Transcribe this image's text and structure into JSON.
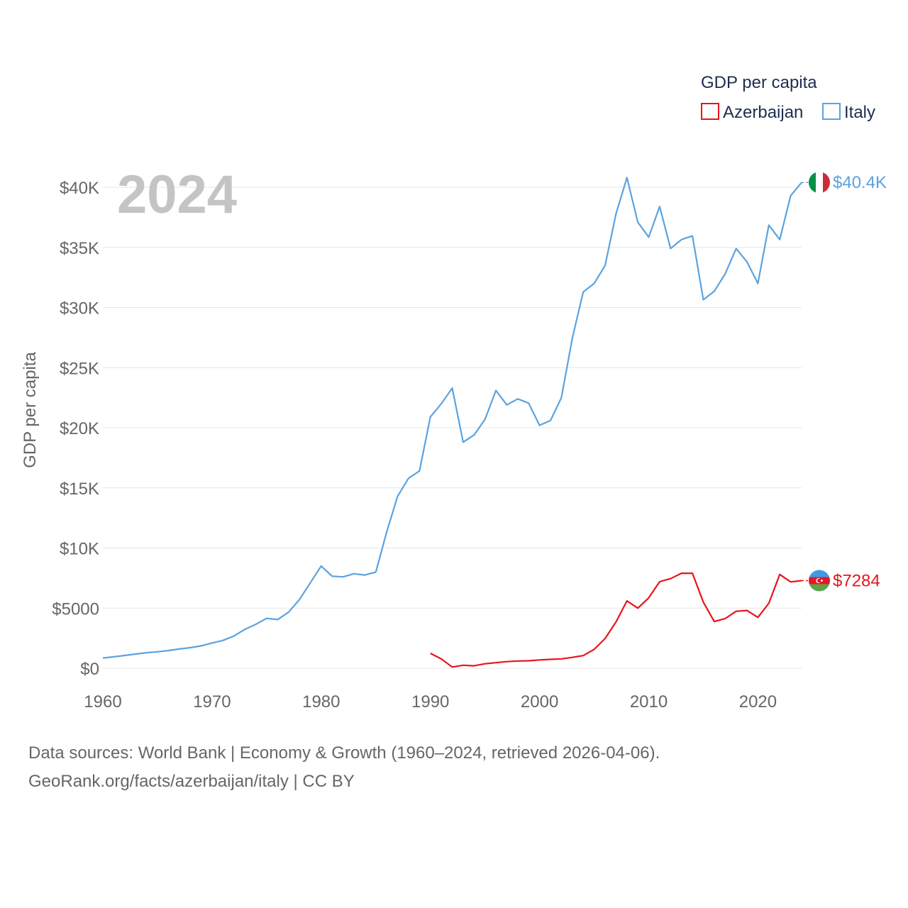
{
  "chart_data": {
    "type": "line",
    "title": "GDP per capita",
    "year_label": "2024",
    "ylabel": "GDP per capita",
    "xlabel": "",
    "xlim": [
      1960,
      2024
    ],
    "ylim": [
      0,
      42000
    ],
    "x_ticks": [
      1960,
      1970,
      1980,
      1990,
      2000,
      2010,
      2020
    ],
    "x_tick_labels": [
      "1960",
      "1970",
      "1980",
      "1990",
      "2000",
      "2010",
      "2020"
    ],
    "y_ticks": [
      0,
      5000,
      10000,
      15000,
      20000,
      25000,
      30000,
      35000,
      40000
    ],
    "y_tick_labels": [
      "$0",
      "$5000",
      "$10K",
      "$15K",
      "$20K",
      "$25K",
      "$30K",
      "$35K",
      "$40K"
    ],
    "grid": true,
    "legend": {
      "title": "GDP per capita",
      "position": "top-right"
    },
    "series": [
      {
        "name": "Azerbaijan",
        "color": "#e8141c",
        "end_label": "$7284",
        "flag_icon": "azerbaijan-flag-icon",
        "x": [
          1990,
          1991,
          1992,
          1993,
          1994,
          1995,
          1996,
          1997,
          1998,
          1999,
          2000,
          2001,
          2002,
          2003,
          2004,
          2005,
          2006,
          2007,
          2008,
          2009,
          2010,
          2011,
          2012,
          2013,
          2014,
          2015,
          2016,
          2017,
          2018,
          2019,
          2020,
          2021,
          2022,
          2023,
          2024
        ],
        "values": [
          1240,
          770,
          100,
          250,
          200,
          370,
          460,
          550,
          600,
          620,
          690,
          740,
          780,
          900,
          1050,
          1570,
          2470,
          3850,
          5600,
          5000,
          5850,
          7200,
          7450,
          7900,
          7900,
          5500,
          3880,
          4130,
          4740,
          4800,
          4230,
          5400,
          7800,
          7180,
          7284
        ]
      },
      {
        "name": "Italy",
        "color": "#5ba3e0",
        "end_label": "$40.4K",
        "flag_icon": "italy-flag-icon",
        "x": [
          1960,
          1961,
          1962,
          1963,
          1964,
          1965,
          1966,
          1967,
          1968,
          1969,
          1970,
          1971,
          1972,
          1973,
          1974,
          1975,
          1976,
          1977,
          1978,
          1979,
          1980,
          1981,
          1982,
          1983,
          1984,
          1985,
          1986,
          1987,
          1988,
          1989,
          1990,
          1991,
          1992,
          1993,
          1994,
          1995,
          1996,
          1997,
          1998,
          1999,
          2000,
          2001,
          2002,
          2003,
          2004,
          2005,
          2006,
          2007,
          2008,
          2009,
          2010,
          2011,
          2012,
          2013,
          2014,
          2015,
          2016,
          2017,
          2018,
          2019,
          2020,
          2021,
          2022,
          2023,
          2024
        ],
        "values": [
          850,
          950,
          1060,
          1180,
          1290,
          1370,
          1470,
          1600,
          1710,
          1860,
          2100,
          2310,
          2680,
          3230,
          3650,
          4150,
          4050,
          4650,
          5700,
          7100,
          8500,
          7650,
          7600,
          7860,
          7750,
          8000,
          11350,
          14300,
          15800,
          16400,
          20900,
          22000,
          23300,
          18800,
          19400,
          20700,
          23100,
          21900,
          22400,
          22050,
          20200,
          20600,
          22500,
          27450,
          31300,
          32000,
          33500,
          37800,
          40800,
          37100,
          35850,
          38400,
          34900,
          35650,
          35950,
          30650,
          31350,
          32800,
          34900,
          33800,
          32000,
          36850,
          35650,
          39300,
          40400
        ]
      }
    ]
  },
  "footer": {
    "line1": "Data sources: World Bank | Economy & Growth (1960–2024, retrieved 2026-04-06).",
    "line2": "GeoRank.org/facts/azerbaijan/italy | CC BY"
  }
}
